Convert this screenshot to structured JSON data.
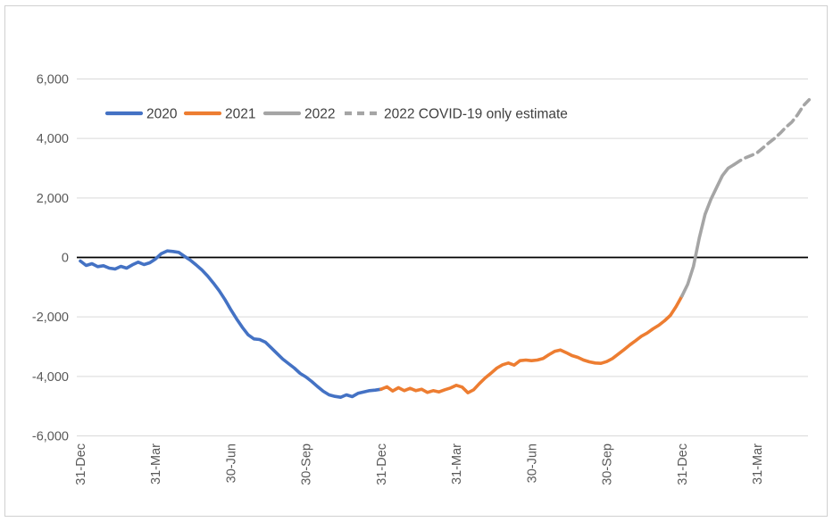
{
  "chart_data": {
    "type": "line",
    "title": "",
    "grid": true,
    "legend_position": "inside-top-left",
    "ylim": [
      -6000,
      6000
    ],
    "y_tick_labels": [
      "6,000",
      "4,000",
      "2,000",
      "0",
      "-2,000",
      "-4,000",
      "-6,000"
    ],
    "y_tick_values": [
      6000,
      4000,
      2000,
      0,
      -2000,
      -4000,
      -6000
    ],
    "x_tick_labels": [
      "31-Dec",
      "31-Mar",
      "30-Jun",
      "30-Sep",
      "31-Dec",
      "31-Mar",
      "30-Jun",
      "30-Sep",
      "31-Dec",
      "31-Mar"
    ],
    "x_tick_weeks": [
      0,
      13,
      26,
      39,
      52,
      65,
      78,
      91,
      104,
      117
    ],
    "x_range_weeks": [
      0,
      126
    ],
    "colors": {
      "blue_2020": "#4472C4",
      "orange_2021": "#ED7D31",
      "gray_2022": "#A5A5A5",
      "zero_axis": "#000000",
      "gridline": "#D9D9D9",
      "tick_text": "#595959",
      "legend_text": "#3F3F3F"
    },
    "series": [
      {
        "name": "2020",
        "color": "#4472C4",
        "style": "solid",
        "points": [
          [
            0,
            -120
          ],
          [
            1,
            -270
          ],
          [
            2,
            -210
          ],
          [
            3,
            -310
          ],
          [
            4,
            -280
          ],
          [
            5,
            -360
          ],
          [
            6,
            -390
          ],
          [
            7,
            -300
          ],
          [
            8,
            -360
          ],
          [
            9,
            -250
          ],
          [
            10,
            -160
          ],
          [
            11,
            -240
          ],
          [
            12,
            -180
          ],
          [
            13,
            -50
          ],
          [
            14,
            130
          ],
          [
            15,
            220
          ],
          [
            16,
            200
          ],
          [
            17,
            170
          ],
          [
            18,
            40
          ],
          [
            19,
            -90
          ],
          [
            20,
            -250
          ],
          [
            21,
            -420
          ],
          [
            22,
            -620
          ],
          [
            23,
            -860
          ],
          [
            24,
            -1120
          ],
          [
            25,
            -1420
          ],
          [
            26,
            -1750
          ],
          [
            27,
            -2060
          ],
          [
            28,
            -2350
          ],
          [
            29,
            -2600
          ],
          [
            30,
            -2740
          ],
          [
            31,
            -2760
          ],
          [
            32,
            -2850
          ],
          [
            33,
            -3040
          ],
          [
            34,
            -3230
          ],
          [
            35,
            -3420
          ],
          [
            36,
            -3570
          ],
          [
            37,
            -3720
          ],
          [
            38,
            -3900
          ],
          [
            39,
            -4020
          ],
          [
            40,
            -4170
          ],
          [
            41,
            -4340
          ],
          [
            42,
            -4500
          ],
          [
            43,
            -4620
          ],
          [
            44,
            -4670
          ],
          [
            45,
            -4700
          ],
          [
            46,
            -4620
          ],
          [
            47,
            -4680
          ],
          [
            48,
            -4570
          ],
          [
            49,
            -4520
          ],
          [
            50,
            -4480
          ],
          [
            51,
            -4460
          ],
          [
            52,
            -4430
          ]
        ]
      },
      {
        "name": "2021",
        "color": "#ED7D31",
        "style": "solid",
        "points": [
          [
            52,
            -4430
          ],
          [
            53,
            -4350
          ],
          [
            54,
            -4490
          ],
          [
            55,
            -4380
          ],
          [
            56,
            -4480
          ],
          [
            57,
            -4400
          ],
          [
            58,
            -4480
          ],
          [
            59,
            -4430
          ],
          [
            60,
            -4540
          ],
          [
            61,
            -4480
          ],
          [
            62,
            -4520
          ],
          [
            63,
            -4450
          ],
          [
            64,
            -4390
          ],
          [
            65,
            -4300
          ],
          [
            66,
            -4360
          ],
          [
            67,
            -4550
          ],
          [
            68,
            -4450
          ],
          [
            69,
            -4240
          ],
          [
            70,
            -4050
          ],
          [
            71,
            -3890
          ],
          [
            72,
            -3720
          ],
          [
            73,
            -3610
          ],
          [
            74,
            -3550
          ],
          [
            75,
            -3620
          ],
          [
            76,
            -3470
          ],
          [
            77,
            -3450
          ],
          [
            78,
            -3470
          ],
          [
            79,
            -3450
          ],
          [
            80,
            -3400
          ],
          [
            81,
            -3270
          ],
          [
            82,
            -3160
          ],
          [
            83,
            -3110
          ],
          [
            84,
            -3200
          ],
          [
            85,
            -3300
          ],
          [
            86,
            -3360
          ],
          [
            87,
            -3450
          ],
          [
            88,
            -3510
          ],
          [
            89,
            -3550
          ],
          [
            90,
            -3560
          ],
          [
            91,
            -3500
          ],
          [
            92,
            -3400
          ],
          [
            93,
            -3250
          ],
          [
            94,
            -3100
          ],
          [
            95,
            -2940
          ],
          [
            96,
            -2800
          ],
          [
            97,
            -2650
          ],
          [
            98,
            -2540
          ],
          [
            99,
            -2400
          ],
          [
            100,
            -2280
          ],
          [
            101,
            -2130
          ],
          [
            102,
            -1950
          ],
          [
            103,
            -1650
          ],
          [
            104,
            -1300
          ]
        ]
      },
      {
        "name": "2022",
        "color": "#A5A5A5",
        "style": "solid",
        "points": [
          [
            104,
            -1300
          ],
          [
            105,
            -900
          ],
          [
            106,
            -300
          ],
          [
            107,
            650
          ],
          [
            108,
            1450
          ],
          [
            109,
            1950
          ],
          [
            110,
            2350
          ],
          [
            111,
            2750
          ],
          [
            112,
            3000
          ],
          [
            113,
            3120
          ]
        ]
      },
      {
        "name": "2022 COVID-19 only estimate",
        "color": "#A5A5A5",
        "style": "dashed",
        "points": [
          [
            113,
            3120
          ],
          [
            114,
            3250
          ],
          [
            115,
            3350
          ],
          [
            116,
            3430
          ],
          [
            117,
            3520
          ],
          [
            118,
            3680
          ],
          [
            119,
            3850
          ],
          [
            120,
            4000
          ],
          [
            121,
            4180
          ],
          [
            122,
            4380
          ],
          [
            123,
            4550
          ],
          [
            124,
            4800
          ],
          [
            125,
            5100
          ],
          [
            126,
            5300
          ]
        ]
      }
    ],
    "legend": [
      {
        "label": "2020",
        "color": "#4472C4",
        "style": "solid"
      },
      {
        "label": "2021",
        "color": "#ED7D31",
        "style": "solid"
      },
      {
        "label": "2022",
        "color": "#A5A5A5",
        "style": "solid"
      },
      {
        "label": "2022 COVID-19 only estimate",
        "color": "#A5A5A5",
        "style": "dashed"
      }
    ]
  }
}
